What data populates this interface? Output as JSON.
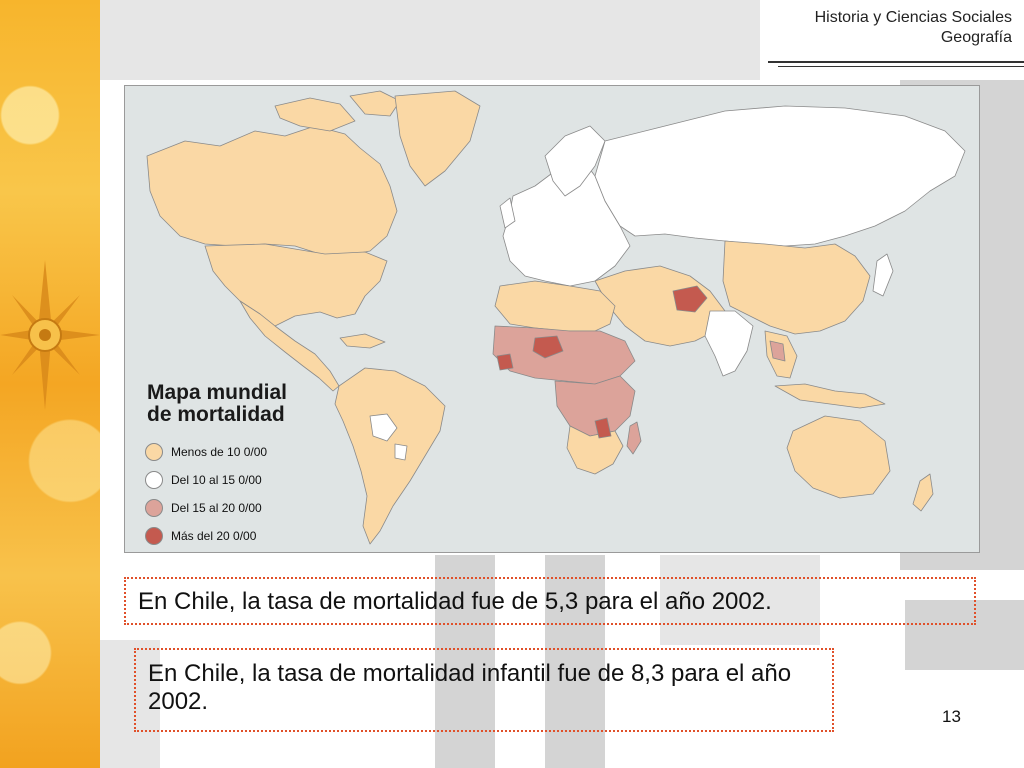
{
  "header": {
    "subject": "Historia y Ciencias Sociales",
    "topic": "Geografía"
  },
  "map": {
    "title_line1": "Mapa mundial",
    "title_line2": "de mortalidad",
    "legend": [
      {
        "label": "Menos de 10 0/00",
        "color": "#fad8a5"
      },
      {
        "label": "Del 10 al 15 0/00",
        "color": "#ffffff"
      },
      {
        "label": "Del 15 al 20 0/00",
        "color": "#dca39a"
      },
      {
        "label": "Más del 20 0/00",
        "color": "#c45a4f"
      }
    ],
    "ocean_color": "#dfe4e4",
    "border_color": "#8a8a8a"
  },
  "notes": {
    "note1": "En Chile, la tasa de mortalidad fue de 5,3 para el año 2002.",
    "note2": "En Chile, la tasa de mortalidad infantil fue de 8,3 para el año 2002."
  },
  "page_number": "13"
}
